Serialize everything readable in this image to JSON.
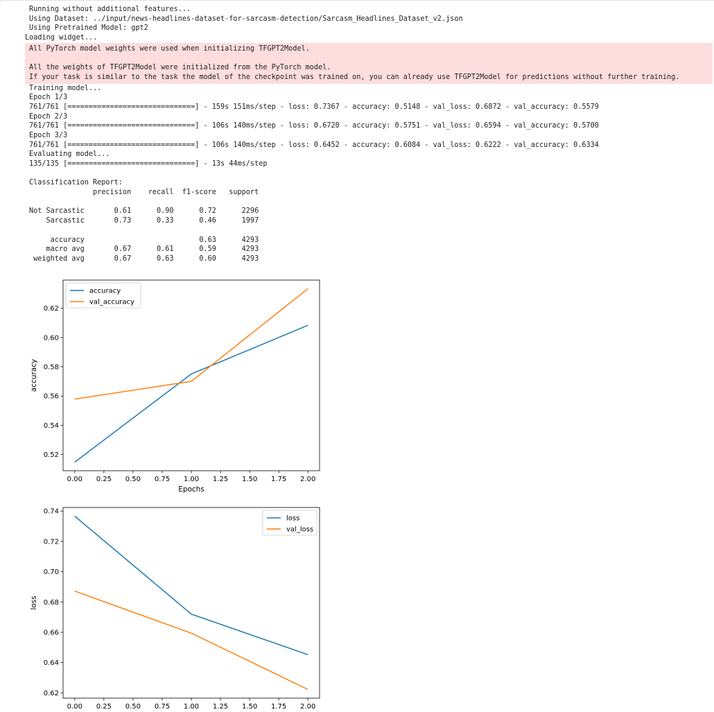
{
  "log_pre": [
    "Running without additional features...",
    "Using Dataset: ../input/news-headlines-dataset-for-sarcasm-detection/Sarcasm_Headlines_Dataset_v2.json",
    "Using Pretrained Model: gpt2"
  ],
  "widget_line": "Loading widget...",
  "stderr_lines": [
    "All PyTorch model weights were used when initializing TFGPT2Model.",
    "",
    "All the weights of TFGPT2Model were initialized from the PyTorch model.",
    "If your task is similar to the task the model of the checkpoint was trained on, you can already use TFGPT2Model for predictions without further training."
  ],
  "log_post": [
    "Training model...",
    "Epoch 1/3",
    "761/761 [==============================] - 159s 151ms/step - loss: 0.7367 - accuracy: 0.5148 - val_loss: 0.6872 - val_accuracy: 0.5579",
    "Epoch 2/3",
    "761/761 [==============================] - 106s 140ms/step - loss: 0.6720 - accuracy: 0.5751 - val_loss: 0.6594 - val_accuracy: 0.5700",
    "Epoch 3/3",
    "761/761 [==============================] - 106s 140ms/step - loss: 0.6452 - accuracy: 0.6084 - val_loss: 0.6222 - val_accuracy: 0.6334",
    "Evaluating model...",
    "135/135 [==============================] - 13s 44ms/step",
    "",
    "Classification Report:"
  ],
  "report": {
    "header": [
      "precision",
      "recall",
      "f1-score",
      "support"
    ],
    "rows": [
      {
        "label": "Not Sarcastic",
        "precision": "0.61",
        "recall": "0.90",
        "f1": "0.72",
        "support": "2296"
      },
      {
        "label": "Sarcastic",
        "precision": "0.73",
        "recall": "0.33",
        "f1": "0.46",
        "support": "1997"
      },
      {
        "label": "",
        "precision": "",
        "recall": "",
        "f1": "",
        "support": ""
      },
      {
        "label": "accuracy",
        "precision": "",
        "recall": "",
        "f1": "0.63",
        "support": "4293"
      },
      {
        "label": "macro avg",
        "precision": "0.67",
        "recall": "0.61",
        "f1": "0.59",
        "support": "4293"
      },
      {
        "label": "weighted avg",
        "precision": "0.67",
        "recall": "0.63",
        "f1": "0.60",
        "support": "4293"
      }
    ]
  },
  "colors": {
    "series1": "#1f77b4",
    "series2": "#ff7f0e",
    "stderr_bg": "#fddddd"
  },
  "chart_data": [
    {
      "type": "line",
      "title": "",
      "xlabel": "Epochs",
      "ylabel": "accuracy",
      "x": [
        0,
        1,
        2
      ],
      "series": [
        {
          "name": "accuracy",
          "values": [
            0.5148,
            0.5751,
            0.6084
          ]
        },
        {
          "name": "val_accuracy",
          "values": [
            0.5579,
            0.57,
            0.6334
          ]
        }
      ],
      "xlim": [
        -0.1,
        2.1
      ],
      "ylim": [
        0.5089,
        0.6393
      ],
      "xticks": [
        "0.00",
        "0.25",
        "0.50",
        "0.75",
        "1.00",
        "1.25",
        "1.50",
        "1.75",
        "2.00"
      ],
      "yticks": [
        "0.52",
        "0.54",
        "0.56",
        "0.58",
        "0.60",
        "0.62"
      ],
      "legend": "upper-left",
      "grid": false
    },
    {
      "type": "line",
      "title": "",
      "xlabel": "",
      "ylabel": "loss",
      "x": [
        0,
        1,
        2
      ],
      "series": [
        {
          "name": "loss",
          "values": [
            0.7367,
            0.672,
            0.6452
          ]
        },
        {
          "name": "val_loss",
          "values": [
            0.6872,
            0.6594,
            0.6222
          ]
        }
      ],
      "xlim": [
        -0.1,
        2.1
      ],
      "ylim": [
        0.6165,
        0.7424
      ],
      "xticks": [
        "0.00",
        "0.25",
        "0.50",
        "0.75",
        "1.00",
        "1.25",
        "1.50",
        "1.75",
        "2.00"
      ],
      "yticks": [
        "0.62",
        "0.64",
        "0.66",
        "0.68",
        "0.70",
        "0.72",
        "0.74"
      ],
      "legend": "upper-right",
      "grid": false
    }
  ]
}
